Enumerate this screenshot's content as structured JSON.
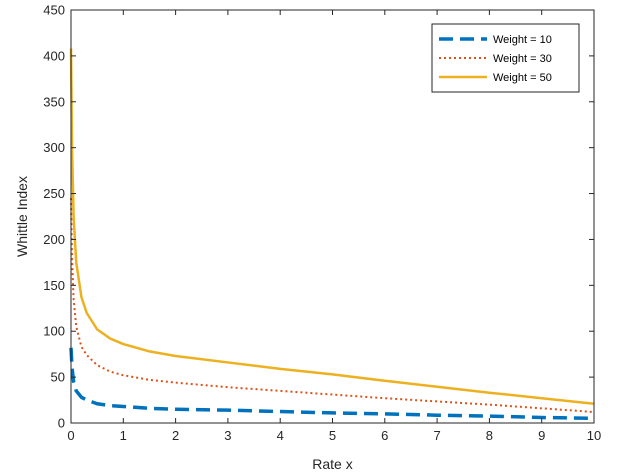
{
  "chart_data": {
    "type": "line",
    "title": "",
    "xlabel": "Rate x",
    "ylabel": "Whittle Index",
    "xlim": [
      0,
      10
    ],
    "ylim": [
      0,
      450
    ],
    "xticks": [
      0,
      1,
      2,
      3,
      4,
      5,
      6,
      7,
      8,
      9,
      10
    ],
    "yticks": [
      0,
      50,
      100,
      150,
      200,
      250,
      300,
      350,
      400,
      450
    ],
    "grid": false,
    "box": true,
    "legend": {
      "placement": "top-right"
    },
    "series": [
      {
        "name": "Weight = 10",
        "color": "#0072BD",
        "style": "dashed",
        "x": [
          0,
          0.02,
          0.05,
          0.1,
          0.2,
          0.3,
          0.5,
          0.75,
          1,
          1.5,
          2,
          3,
          4,
          5,
          6,
          7,
          8,
          9,
          10
        ],
        "y": [
          82,
          60,
          45,
          35,
          28,
          25,
          21,
          19,
          18,
          16,
          15,
          14,
          12.5,
          11,
          10,
          8.5,
          7.5,
          6,
          5
        ]
      },
      {
        "name": "Weight = 30",
        "color": "#D95319",
        "style": "dotted",
        "x": [
          0,
          0.02,
          0.05,
          0.1,
          0.2,
          0.3,
          0.5,
          0.75,
          1,
          1.5,
          2,
          3,
          4,
          5,
          6,
          7,
          8,
          9,
          10
        ],
        "y": [
          245,
          180,
          135,
          105,
          83,
          74,
          63,
          56,
          52,
          47,
          44,
          39,
          35,
          31,
          27,
          23.5,
          20,
          16,
          12
        ]
      },
      {
        "name": "Weight = 50",
        "color": "#EDB120",
        "style": "solid",
        "x": [
          0,
          0.02,
          0.05,
          0.1,
          0.2,
          0.3,
          0.5,
          0.75,
          1,
          1.5,
          2,
          3,
          4,
          5,
          6,
          7,
          8,
          9,
          10
        ],
        "y": [
          408,
          300,
          225,
          175,
          137,
          120,
          102,
          92,
          86,
          78,
          73,
          66,
          59,
          53,
          46,
          39.5,
          33,
          27,
          21
        ]
      }
    ]
  }
}
